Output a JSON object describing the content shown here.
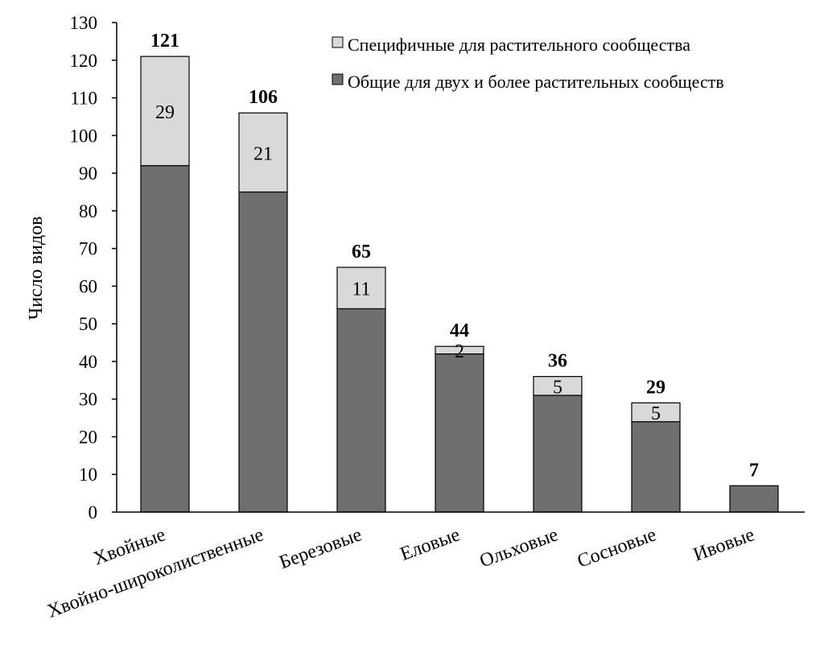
{
  "chart_data": {
    "type": "bar",
    "stacked": true,
    "ylabel": "Число видов",
    "ylim": [
      0,
      130
    ],
    "yticks": [
      0,
      10,
      20,
      30,
      40,
      50,
      60,
      70,
      80,
      90,
      100,
      110,
      120,
      130
    ],
    "grid": false,
    "legend_position": "top-right",
    "categories": [
      "Хвойные",
      "Хвойно-широколиственные",
      "Березовые",
      "Еловые",
      "Ольховые",
      "Сосновые",
      "Ивовые"
    ],
    "series": [
      {
        "name": "Общие для двух и более растительных сообществ",
        "color": "#6f6f6f",
        "values": [
          92,
          85,
          54,
          42,
          31,
          24,
          7
        ]
      },
      {
        "name": "Специфичные для растительного сообщества",
        "color": "#d9d9d9",
        "values": [
          29,
          21,
          11,
          2,
          5,
          5,
          0
        ],
        "labels": [
          "29",
          "21",
          "11",
          "2",
          "5",
          "5",
          ""
        ]
      }
    ],
    "totals": [
      "121",
      "106",
      "65",
      "44",
      "36",
      "29",
      "7"
    ]
  }
}
